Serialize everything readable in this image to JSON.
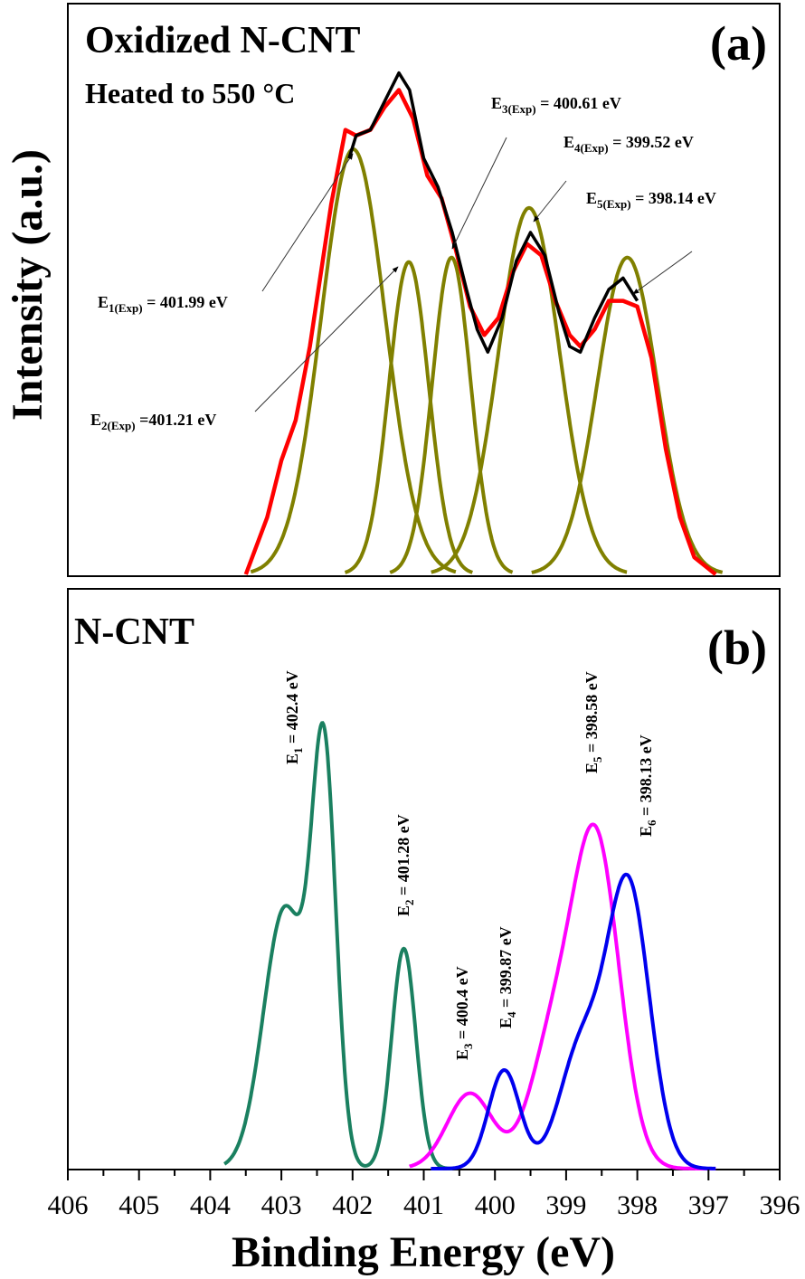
{
  "chart_data": [
    {
      "type": "line",
      "panel_label": "(a)",
      "title": "Oxidized N-CNT",
      "subtitle": "Heated to 550 °C",
      "xlabel": "Binding Energy (eV)",
      "ylabel": "Intensity (a.u.)",
      "xlim": [
        406,
        396
      ],
      "ylim": [
        0,
        1
      ],
      "x_reversed": true,
      "grid": false,
      "colors": {
        "experimental": "#000000",
        "fit_envelope": "#ff0000",
        "components": "#808000"
      },
      "series": [
        {
          "role": "fit_envelope",
          "x": [
            403.5,
            403.2,
            403.0,
            402.8,
            402.6,
            402.3,
            402.1,
            401.95,
            401.75,
            401.55,
            401.35,
            401.15,
            400.95,
            400.75,
            400.55,
            400.35,
            400.15,
            399.95,
            399.75,
            399.55,
            399.35,
            399.15,
            398.95,
            398.8,
            398.6,
            398.4,
            398.2,
            398.0,
            397.8,
            397.6,
            397.4,
            397.2,
            396.9
          ],
          "y": [
            0,
            0.1,
            0.2,
            0.27,
            0.4,
            0.65,
            0.78,
            0.77,
            0.78,
            0.82,
            0.85,
            0.8,
            0.7,
            0.66,
            0.57,
            0.47,
            0.42,
            0.45,
            0.53,
            0.58,
            0.56,
            0.48,
            0.42,
            0.4,
            0.43,
            0.48,
            0.48,
            0.47,
            0.38,
            0.22,
            0.1,
            0.03,
            0
          ]
        },
        {
          "role": "experimental",
          "x": [
            402.05,
            401.95,
            401.75,
            401.55,
            401.35,
            401.2,
            401.0,
            400.8,
            400.6,
            400.4,
            400.25,
            400.1,
            399.9,
            399.7,
            399.5,
            399.3,
            399.1,
            398.95,
            398.8,
            398.6,
            398.4,
            398.2,
            398.0
          ],
          "y": [
            0.73,
            0.77,
            0.78,
            0.83,
            0.88,
            0.85,
            0.73,
            0.68,
            0.6,
            0.5,
            0.43,
            0.39,
            0.45,
            0.55,
            0.6,
            0.56,
            0.46,
            0.4,
            0.39,
            0.45,
            0.5,
            0.52,
            0.48
          ]
        }
      ],
      "components": [
        {
          "center": 401.99,
          "height": 0.746,
          "sigma": 0.45
        },
        {
          "center": 401.21,
          "height": 0.548,
          "sigma": 0.28
        },
        {
          "center": 400.61,
          "height": 0.556,
          "sigma": 0.27
        },
        {
          "center": 399.52,
          "height": 0.643,
          "sigma": 0.43
        },
        {
          "center": 398.14,
          "height": 0.556,
          "sigma": 0.42
        }
      ],
      "annotations": [
        {
          "sym": "E",
          "sub": "1(Exp)",
          "rest": " = 401.99 eV",
          "target": 401.99
        },
        {
          "sym": "E",
          "sub": "2(Exp)",
          "rest": " =401.21 eV",
          "target": 401.21
        },
        {
          "sym": "E",
          "sub": "3(Exp)",
          "rest": " = 400.61 eV",
          "target": 400.61
        },
        {
          "sym": "E",
          "sub": "4(Exp)",
          "rest": " = 399.52 eV",
          "target": 399.52
        },
        {
          "sym": "E",
          "sub": "5(Exp)",
          "rest": " = 398.14 eV",
          "target": 398.14
        }
      ]
    },
    {
      "type": "line",
      "panel_label": "(b)",
      "title": "N-CNT",
      "xlabel": "Binding Energy (eV)",
      "ylabel": "Intensity (a.u.)",
      "xlim": [
        406,
        396
      ],
      "ylim": [
        0,
        1
      ],
      "x_reversed": true,
      "grid": false,
      "xticks": [
        406,
        405,
        404,
        403,
        402,
        401,
        400,
        399,
        398,
        397,
        396
      ],
      "series": [
        {
          "color": "#1a8060",
          "range": [
            403.8,
            400.6
          ],
          "components": [
            {
              "center": 402.4,
              "height": 0.68,
              "sigma": 0.17
            },
            {
              "center": 402.95,
              "height": 0.45,
              "sigma": 0.3
            },
            {
              "center": 401.28,
              "height": 0.38,
              "sigma": 0.17
            }
          ]
        },
        {
          "color": "#ff00ff",
          "range": [
            401.2,
            396.9
          ],
          "components": [
            {
              "center": 398.58,
              "height": 0.56,
              "sigma": 0.33
            },
            {
              "center": 399.2,
              "height": 0.2,
              "sigma": 0.32
            },
            {
              "center": 400.35,
              "height": 0.13,
              "sigma": 0.32
            }
          ]
        },
        {
          "color": "#0000ee",
          "range": [
            400.9,
            396.9
          ],
          "components": [
            {
              "center": 399.87,
              "height": 0.17,
              "sigma": 0.22
            },
            {
              "center": 398.13,
              "height": 0.49,
              "sigma": 0.3
            },
            {
              "center": 398.8,
              "height": 0.2,
              "sigma": 0.3
            }
          ]
        }
      ],
      "annotations": [
        {
          "sym": "E",
          "sub": "1",
          "rest": " = 402.4 eV"
        },
        {
          "sym": "E",
          "sub": "2",
          "rest": " = 401.28 eV"
        },
        {
          "sym": "E",
          "sub": "3",
          "rest": " = 400.4 eV"
        },
        {
          "sym": "E",
          "sub": "4",
          "rest": " = 399.87 eV"
        },
        {
          "sym": "E",
          "sub": "5",
          "rest": " = 398.58 eV"
        },
        {
          "sym": "E",
          "sub": "6",
          "rest": " = 398.13 eV"
        }
      ]
    }
  ]
}
